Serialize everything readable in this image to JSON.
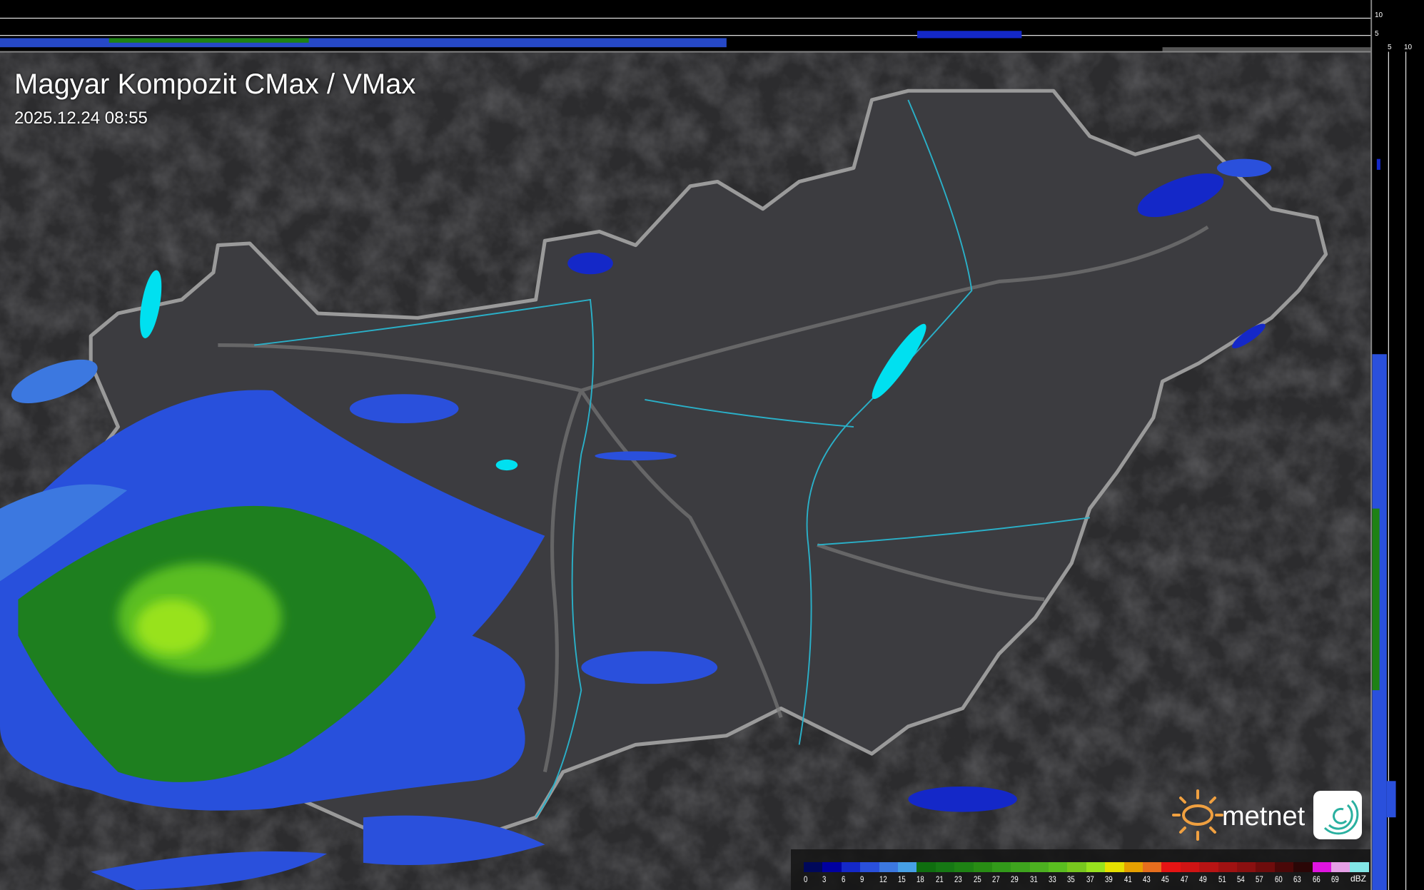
{
  "header": {
    "title": "Magyar Kompozit CMax / VMax",
    "timestamp": "2025.12.24 08:55"
  },
  "profile_axes": {
    "top_ticks": [
      "10",
      "5"
    ],
    "side_ticks": [
      "5",
      "10"
    ]
  },
  "legend": {
    "unit": "dBZ",
    "labels": [
      "0",
      "3",
      "6",
      "9",
      "12",
      "15",
      "18",
      "21",
      "23",
      "25",
      "27",
      "29",
      "31",
      "33",
      "35",
      "37",
      "39",
      "41",
      "43",
      "45",
      "47",
      "49",
      "51",
      "54",
      "57",
      "60",
      "63",
      "66",
      "69"
    ],
    "colors": [
      "#00085a",
      "#0000a0",
      "#1428c8",
      "#2a50dc",
      "#3c78e0",
      "#46a0e6",
      "#0f6e0f",
      "#167814",
      "#1e8214",
      "#288c14",
      "#329a1a",
      "#3ea41e",
      "#4cb020",
      "#5abe20",
      "#78c81e",
      "#98e21e",
      "#e6e000",
      "#e6a000",
      "#e66e1e",
      "#e61414",
      "#d01414",
      "#b81414",
      "#a01212",
      "#8a1010",
      "#6e0c0c",
      "#4a0808",
      "#2a0606",
      "#e014e0",
      "#e6a0e6"
    ],
    "extra_color": "#82e6e6"
  },
  "brand": {
    "name": "metnet",
    "sun_color": "#f0a040"
  },
  "colors": {
    "terrain": "#2c2c2e",
    "country_fill": "#3c3c40",
    "border": "#9a9a9a",
    "rivers": "#2ab0c8",
    "lakes": "#00e0f0"
  }
}
